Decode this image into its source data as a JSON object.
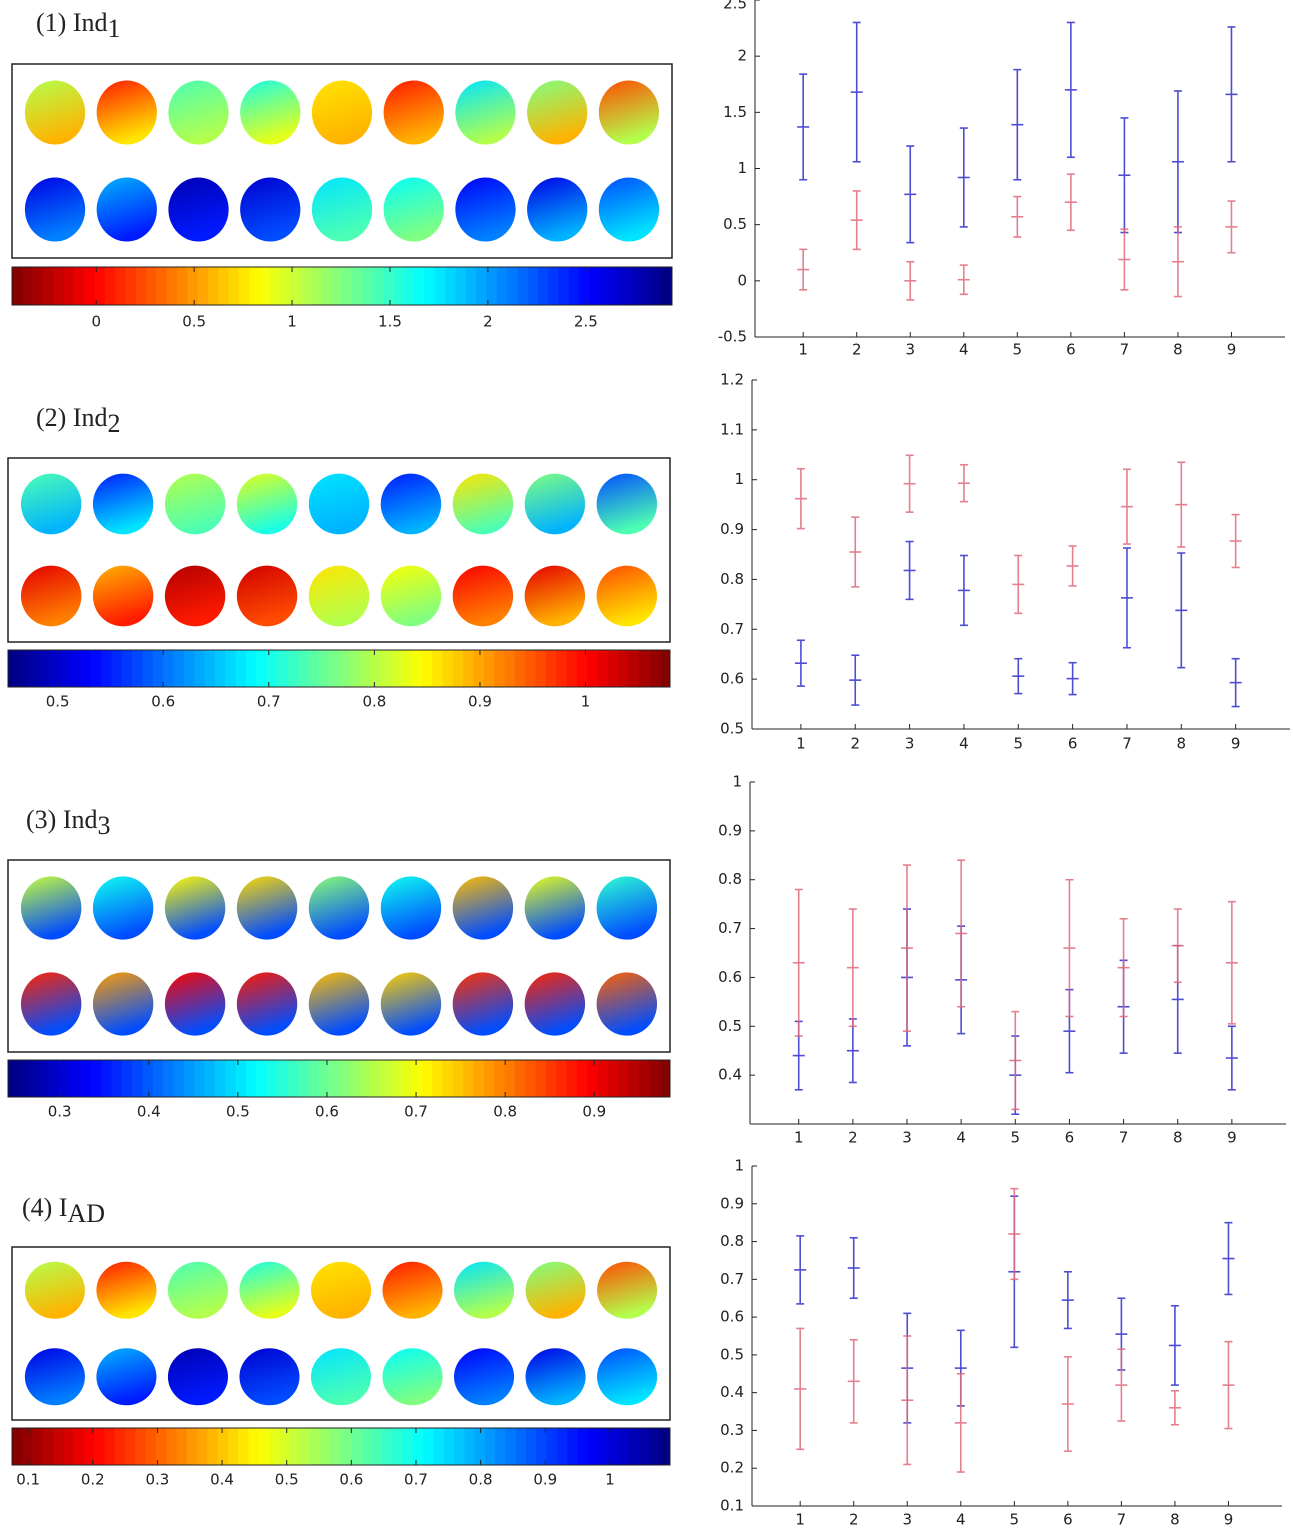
{
  "chart_data": [
    {
      "type": "errorbar",
      "title": "(1) Ind",
      "title_subscript": "1",
      "colorbar": {
        "lim": [
          -0.43,
          2.94
        ],
        "ticks": [
          0,
          0.5,
          1,
          1.5,
          2,
          2.5
        ],
        "colormap": "jet",
        "reversed": true
      },
      "categories": [
        1,
        2,
        3,
        4,
        5,
        6,
        7,
        8,
        9
      ],
      "xlim": [
        0.1,
        10
      ],
      "ylim": [
        -0.5,
        2.5
      ],
      "yticks": [
        -0.5,
        0,
        0.5,
        1,
        1.5,
        2,
        2.5
      ],
      "series": [
        {
          "color": "#3a3ad0",
          "values": [
            1.37,
            1.68,
            0.77,
            0.92,
            1.39,
            1.7,
            0.94,
            1.06,
            1.66
          ],
          "errors": [
            0.47,
            0.62,
            0.43,
            0.44,
            0.49,
            0.6,
            0.51,
            0.63,
            0.6
          ]
        },
        {
          "color": "#e0697a",
          "values": [
            0.1,
            0.54,
            0.0,
            0.01,
            0.57,
            0.7,
            0.19,
            0.17,
            0.48
          ],
          "errors": [
            0.18,
            0.26,
            0.17,
            0.13,
            0.18,
            0.25,
            0.27,
            0.31,
            0.23
          ]
        }
      ]
    },
    {
      "type": "errorbar",
      "title": "(2) Ind",
      "title_subscript": "2",
      "colorbar": {
        "lim": [
          0.453,
          1.08
        ],
        "ticks": [
          0.5,
          0.6,
          0.7,
          0.8,
          0.9,
          1
        ],
        "colormap": "jet",
        "reversed": false
      },
      "categories": [
        1,
        2,
        3,
        4,
        5,
        6,
        7,
        8,
        9
      ],
      "xlim": [
        0.1,
        10
      ],
      "ylim": [
        0.5,
        1.2
      ],
      "yticks": [
        0.5,
        0.6,
        0.7,
        0.8,
        0.9,
        1,
        1.1,
        1.2
      ],
      "series": [
        {
          "color": "#3a3ad0",
          "values": [
            0.632,
            0.598,
            0.818,
            0.778,
            0.606,
            0.601,
            0.763,
            0.738,
            0.593
          ],
          "errors": [
            0.046,
            0.05,
            0.058,
            0.07,
            0.035,
            0.032,
            0.1,
            0.115,
            0.048
          ]
        },
        {
          "color": "#e0697a",
          "values": [
            0.962,
            0.855,
            0.992,
            0.993,
            0.79,
            0.827,
            0.946,
            0.95,
            0.877
          ],
          "errors": [
            0.06,
            0.07,
            0.057,
            0.037,
            0.058,
            0.04,
            0.075,
            0.085,
            0.053
          ]
        }
      ]
    },
    {
      "type": "errorbar",
      "title": "(3) Ind",
      "title_subscript": "3",
      "colorbar": {
        "lim": [
          0.242,
          0.985
        ],
        "ticks": [
          0.3,
          0.4,
          0.5,
          0.6,
          0.7,
          0.8,
          0.9
        ],
        "colormap": "jet",
        "reversed": false
      },
      "categories": [
        1,
        2,
        3,
        4,
        5,
        6,
        7,
        8,
        9
      ],
      "xlim": [
        0.1,
        10
      ],
      "ylim": [
        0.3,
        1
      ],
      "yticks": [
        0.4,
        0.5,
        0.6,
        0.7,
        0.8,
        0.9,
        1
      ],
      "series": [
        {
          "color": "#3a3ad0",
          "values": [
            0.44,
            0.45,
            0.6,
            0.595,
            0.4,
            0.49,
            0.54,
            0.555,
            0.435
          ],
          "errors": [
            0.07,
            0.065,
            0.14,
            0.11,
            0.08,
            0.085,
            0.095,
            0.11,
            0.065
          ]
        },
        {
          "color": "#e0697a",
          "values": [
            0.63,
            0.62,
            0.66,
            0.69,
            0.43,
            0.66,
            0.62,
            0.665,
            0.63
          ],
          "errors": [
            0.15,
            0.12,
            0.17,
            0.15,
            0.1,
            0.14,
            0.1,
            0.075,
            0.125
          ]
        }
      ]
    },
    {
      "type": "errorbar",
      "title": "(4) I",
      "title_subscript": "AD",
      "colorbar": {
        "lim": [
          0.075,
          1.093
        ],
        "ticks": [
          0.1,
          0.2,
          0.3,
          0.4,
          0.5,
          0.6,
          0.7,
          0.8,
          0.9,
          1
        ],
        "colormap": "jet",
        "reversed": true
      },
      "categories": [
        1,
        2,
        3,
        4,
        5,
        6,
        7,
        8,
        9
      ],
      "xlim": [
        0.1,
        10
      ],
      "ylim": [
        0.1,
        1
      ],
      "yticks": [
        0.1,
        0.2,
        0.3,
        0.4,
        0.5,
        0.6,
        0.7,
        0.8,
        0.9,
        1
      ],
      "series": [
        {
          "color": "#3a3ad0",
          "values": [
            0.725,
            0.73,
            0.465,
            0.465,
            0.72,
            0.645,
            0.555,
            0.525,
            0.755
          ],
          "errors": [
            0.09,
            0.08,
            0.145,
            0.1,
            0.2,
            0.075,
            0.095,
            0.105,
            0.095
          ]
        },
        {
          "color": "#e0697a",
          "values": [
            0.41,
            0.43,
            0.38,
            0.32,
            0.82,
            0.37,
            0.42,
            0.36,
            0.42
          ],
          "errors": [
            0.16,
            0.11,
            0.17,
            0.13,
            0.12,
            0.125,
            0.095,
            0.045,
            0.115
          ]
        }
      ]
    }
  ]
}
